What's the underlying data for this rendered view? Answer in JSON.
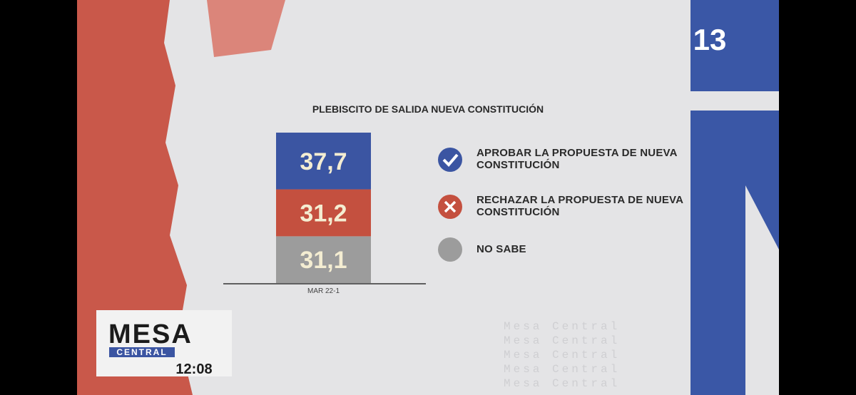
{
  "chart_data": {
    "type": "bar",
    "stacked": true,
    "title": "PLEBISCITO DE SALIDA NUEVA CONSTITUCIÓN",
    "categories": [
      "MAR 22-1"
    ],
    "series": [
      {
        "name": "APROBAR LA PROPUESTA DE NUEVA CONSTITUCIÓN",
        "color": "#3b55a2",
        "values": [
          37.7
        ],
        "value_labels": [
          "37,7"
        ]
      },
      {
        "name": "RECHAZAR LA PROPUESTA DE NUEVA CONSTITUCIÓN",
        "color": "#c4503f",
        "values": [
          31.2
        ],
        "value_labels": [
          "31,2"
        ]
      },
      {
        "name": "NO SABE",
        "color": "#9c9c9c",
        "values": [
          31.1
        ],
        "value_labels": [
          "31,1"
        ]
      }
    ]
  },
  "overlay": {
    "channel_logo": "13",
    "show_title": "MESA",
    "show_subtitle": "CENTRAL",
    "clock": "12:08",
    "watermark": "Mesa Central"
  }
}
